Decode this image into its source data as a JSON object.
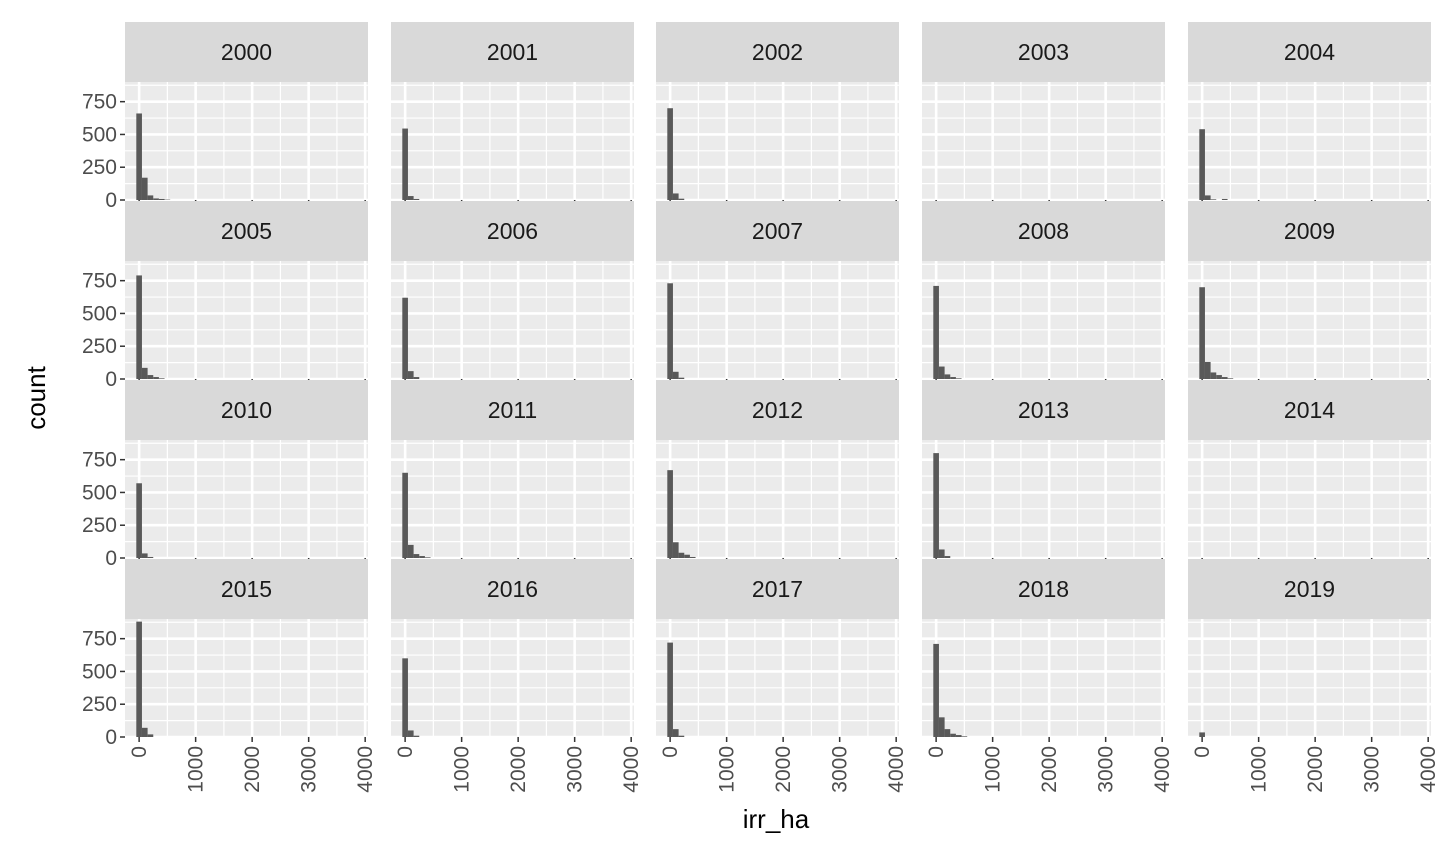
{
  "chart_data": {
    "type": "histogram-facet",
    "xlabel": "irr_ha",
    "ylabel": "count",
    "xlim": [
      -250,
      4050
    ],
    "ylim": [
      0,
      900
    ],
    "x_ticks": [
      "0",
      "1000",
      "2000",
      "3000",
      "4000"
    ],
    "y_ticks": [
      "0",
      "250",
      "500",
      "750"
    ],
    "bin_width": 100,
    "bar_color": "#595959",
    "panel_bg": "#ebebeb",
    "strip_bg": "#d9d9d9",
    "grid": true,
    "facets": [
      {
        "label": "2000",
        "bins": [
          {
            "x": 0,
            "count": 660
          },
          {
            "x": 100,
            "count": 170
          },
          {
            "x": 200,
            "count": 35
          },
          {
            "x": 300,
            "count": 12
          },
          {
            "x": 400,
            "count": 8
          },
          {
            "x": 500,
            "count": 3
          }
        ]
      },
      {
        "label": "2001",
        "bins": [
          {
            "x": 0,
            "count": 545
          },
          {
            "x": 100,
            "count": 30
          },
          {
            "x": 200,
            "count": 8
          }
        ]
      },
      {
        "label": "2002",
        "bins": [
          {
            "x": 0,
            "count": 700
          },
          {
            "x": 100,
            "count": 50
          },
          {
            "x": 200,
            "count": 10
          }
        ]
      },
      {
        "label": "2003",
        "bins": []
      },
      {
        "label": "2004",
        "bins": [
          {
            "x": 0,
            "count": 540
          },
          {
            "x": 100,
            "count": 35
          },
          {
            "x": 200,
            "count": 5
          },
          {
            "x": 400,
            "count": 8
          }
        ]
      },
      {
        "label": "2005",
        "bins": [
          {
            "x": 0,
            "count": 790
          },
          {
            "x": 100,
            "count": 85
          },
          {
            "x": 200,
            "count": 30
          },
          {
            "x": 300,
            "count": 15
          },
          {
            "x": 400,
            "count": 5
          }
        ]
      },
      {
        "label": "2006",
        "bins": [
          {
            "x": 0,
            "count": 620
          },
          {
            "x": 100,
            "count": 60
          },
          {
            "x": 200,
            "count": 15
          }
        ]
      },
      {
        "label": "2007",
        "bins": [
          {
            "x": 0,
            "count": 730
          },
          {
            "x": 100,
            "count": 55
          },
          {
            "x": 200,
            "count": 10
          }
        ]
      },
      {
        "label": "2008",
        "bins": [
          {
            "x": 0,
            "count": 710
          },
          {
            "x": 100,
            "count": 95
          },
          {
            "x": 200,
            "count": 35
          },
          {
            "x": 300,
            "count": 15
          },
          {
            "x": 400,
            "count": 5
          }
        ]
      },
      {
        "label": "2009",
        "bins": [
          {
            "x": 0,
            "count": 700
          },
          {
            "x": 100,
            "count": 130
          },
          {
            "x": 200,
            "count": 50
          },
          {
            "x": 300,
            "count": 30
          },
          {
            "x": 400,
            "count": 15
          },
          {
            "x": 500,
            "count": 5
          }
        ]
      },
      {
        "label": "2010",
        "bins": [
          {
            "x": 0,
            "count": 570
          },
          {
            "x": 100,
            "count": 35
          },
          {
            "x": 200,
            "count": 8
          }
        ]
      },
      {
        "label": "2011",
        "bins": [
          {
            "x": 0,
            "count": 650
          },
          {
            "x": 100,
            "count": 100
          },
          {
            "x": 200,
            "count": 30
          },
          {
            "x": 300,
            "count": 15
          },
          {
            "x": 400,
            "count": 5
          }
        ]
      },
      {
        "label": "2012",
        "bins": [
          {
            "x": 0,
            "count": 670
          },
          {
            "x": 100,
            "count": 120
          },
          {
            "x": 200,
            "count": 40
          },
          {
            "x": 300,
            "count": 25
          },
          {
            "x": 400,
            "count": 8
          }
        ]
      },
      {
        "label": "2013",
        "bins": [
          {
            "x": 0,
            "count": 800
          },
          {
            "x": 100,
            "count": 65
          },
          {
            "x": 200,
            "count": 15
          }
        ]
      },
      {
        "label": "2014",
        "bins": []
      },
      {
        "label": "2015",
        "bins": [
          {
            "x": 0,
            "count": 880
          },
          {
            "x": 100,
            "count": 70
          },
          {
            "x": 200,
            "count": 20
          }
        ]
      },
      {
        "label": "2016",
        "bins": [
          {
            "x": 0,
            "count": 600
          },
          {
            "x": 100,
            "count": 50
          },
          {
            "x": 200,
            "count": 10
          }
        ]
      },
      {
        "label": "2017",
        "bins": [
          {
            "x": 0,
            "count": 720
          },
          {
            "x": 100,
            "count": 60
          },
          {
            "x": 200,
            "count": 10
          }
        ]
      },
      {
        "label": "2018",
        "bins": [
          {
            "x": 0,
            "count": 710
          },
          {
            "x": 100,
            "count": 150
          },
          {
            "x": 200,
            "count": 60
          },
          {
            "x": 300,
            "count": 25
          },
          {
            "x": 400,
            "count": 15
          },
          {
            "x": 500,
            "count": 5
          }
        ]
      },
      {
        "label": "2019",
        "bins": [
          {
            "x": 0,
            "count": 35
          }
        ]
      }
    ]
  }
}
